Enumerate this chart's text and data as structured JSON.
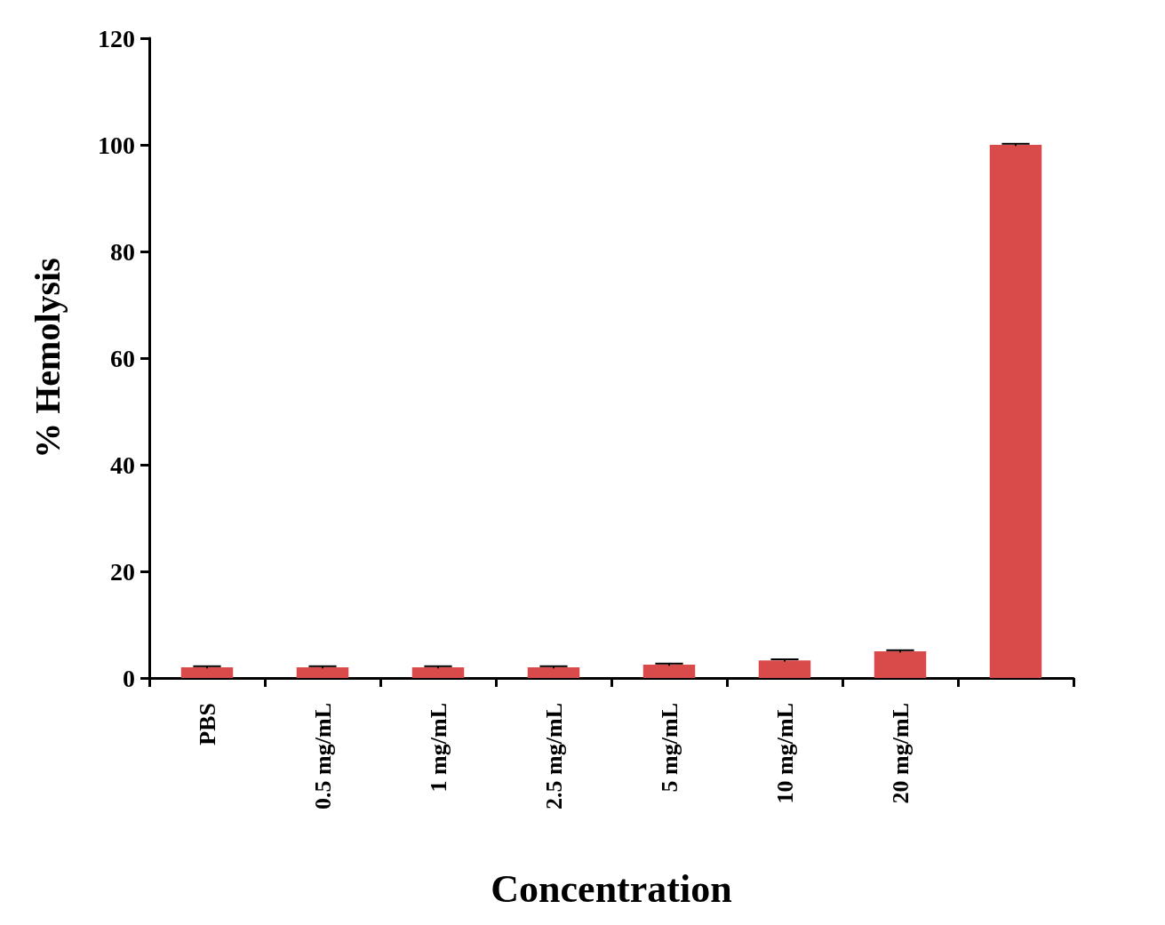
{
  "chart_data": {
    "type": "bar",
    "xlabel": "Concentration",
    "ylabel": "% Hemolysis",
    "categories": [
      "PBS",
      "0.5 mg/mL",
      "1 mg/mL",
      "2.5 mg/mL",
      "5 mg/mL",
      "10 mg/mL",
      "20 mg/mL",
      null
    ],
    "values": [
      2,
      2,
      2,
      2,
      2.5,
      3.3,
      5,
      100
    ],
    "errors": [
      0.2,
      0.2,
      0.2,
      0.2,
      0.2,
      0.2,
      0.2,
      0.2
    ],
    "color": "#d94a4a",
    "ylim": [
      0,
      120
    ],
    "yticks": [
      0,
      20,
      40,
      60,
      80,
      100,
      120
    ],
    "grid": false
  }
}
